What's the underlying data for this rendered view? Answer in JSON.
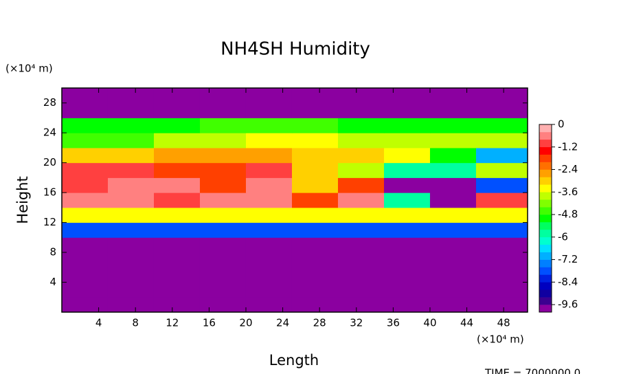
{
  "chart_data": {
    "type": "heatmap",
    "title": "NH4SH Humidity",
    "x_label": "Length",
    "y_label": "Height",
    "x_unit": "(×10⁴ m)",
    "y_unit": "(×10⁴ m)",
    "footer": "TIME = 7000000.0",
    "xlim": [
      0,
      50.6
    ],
    "ylim": [
      0,
      30
    ],
    "xticks": [
      4,
      8,
      12,
      16,
      20,
      24,
      28,
      32,
      36,
      40,
      44,
      48
    ],
    "yticks": [
      4,
      8,
      12,
      16,
      20,
      24,
      28
    ],
    "x_edges": [
      0,
      5,
      10,
      15,
      20,
      25,
      30,
      35,
      40,
      45,
      50.6
    ],
    "y_edges": [
      0,
      2,
      4,
      6,
      8,
      10,
      12,
      14,
      16,
      18,
      20,
      22,
      24,
      26,
      28,
      30
    ],
    "z": [
      [
        -10,
        -10,
        -10,
        -10,
        -10,
        -10,
        -10,
        -10,
        -10,
        -10
      ],
      [
        -10,
        -10,
        -10,
        -10,
        -10,
        -10,
        -10,
        -10,
        -10,
        -10
      ],
      [
        -10,
        -10,
        -10,
        -10,
        -10,
        -10,
        -10,
        -10,
        -10,
        -10
      ],
      [
        -10,
        -10,
        -10,
        -10,
        -10,
        -10,
        -10,
        -10,
        -10,
        -10
      ],
      [
        -10,
        -10,
        -10,
        -10,
        -10,
        -10,
        -10,
        -10,
        -10,
        -10
      ],
      [
        -8,
        -8,
        -8,
        -8,
        -8,
        -8,
        -8,
        -8,
        -8,
        -8
      ],
      [
        -3.5,
        -3.5,
        -3.5,
        -3.5,
        -3.5,
        -3.5,
        -3.5,
        -3.5,
        -3.5,
        -3.5
      ],
      [
        -0.4,
        -0.4,
        -0.8,
        -0.4,
        -0.4,
        -2,
        -0.4,
        -6,
        -10,
        -1
      ],
      [
        -0.8,
        -0.4,
        -0.4,
        -2,
        -0.4,
        -3,
        -2,
        -10,
        -10,
        -8
      ],
      [
        -1,
        -0.8,
        -2,
        -2,
        -1,
        -3,
        -4,
        -6,
        -6,
        -4
      ],
      [
        -3,
        -3,
        -2.5,
        -2.5,
        -2.5,
        -3,
        -3,
        -3.5,
        -5,
        -7
      ],
      [
        -4.5,
        -4.5,
        -4,
        -4,
        -3.5,
        -3.5,
        -4,
        -4,
        -4,
        -4
      ],
      [
        -5,
        -5,
        -5,
        -4.5,
        -4.5,
        -4.5,
        -5,
        -5,
        -5,
        -5
      ],
      [
        -10,
        -10,
        -10,
        -10,
        -10,
        -10,
        -10,
        -10,
        -10,
        -10
      ],
      [
        -10,
        -10,
        -10,
        -10,
        -10,
        -10,
        -10,
        -10,
        -10,
        -10
      ]
    ],
    "clim": [
      -10,
      0
    ],
    "cticks": [
      0,
      -1.2,
      -2.4,
      -3.6,
      -4.8,
      -6,
      -7.2,
      -8.4,
      -9.6
    ],
    "colors": [
      "#8b00a0",
      "#3b0090",
      "#1000a0",
      "#0000c0",
      "#0020e0",
      "#0050ff",
      "#0080ff",
      "#00b0ff",
      "#00e0ff",
      "#00ffd0",
      "#00ffa0",
      "#00ff60",
      "#00ff00",
      "#40ff00",
      "#80ff00",
      "#c0ff00",
      "#ffff00",
      "#ffd000",
      "#ffa000",
      "#ff7000",
      "#ff4000",
      "#ff0000",
      "#ff4040",
      "#ff8080",
      "#ffb0b0"
    ]
  }
}
